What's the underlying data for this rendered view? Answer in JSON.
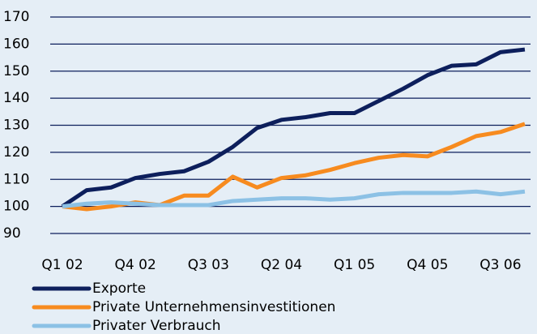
{
  "chart_data": {
    "type": "line",
    "categories": [
      "Q1 02",
      null,
      null,
      "Q4 02",
      null,
      null,
      "Q3 03",
      null,
      null,
      "Q2 04",
      null,
      null,
      "Q1 05",
      null,
      null,
      "Q4 05",
      null,
      null,
      "Q3 06",
      null
    ],
    "series": [
      {
        "name": "Exporte",
        "color": "#0d1f5c",
        "values": [
          100,
          106,
          107,
          110.5,
          112,
          113,
          116.5,
          122,
          129,
          132,
          133,
          134.5,
          134.5,
          139,
          143.5,
          148.5,
          152,
          152.5,
          157,
          158
        ]
      },
      {
        "name": "Private Unternehmensinvestitionen",
        "color": "#f78b1f",
        "values": [
          100,
          99,
          100,
          101.5,
          100.5,
          104,
          104,
          111,
          107,
          110.5,
          111.5,
          113.5,
          116,
          118,
          119,
          118.5,
          122,
          126,
          127.5,
          130.5
        ]
      },
      {
        "name": "Privater Verbrauch",
        "color": "#8cc1e5",
        "values": [
          100,
          101,
          101.5,
          101,
          100.5,
          100.5,
          100.5,
          102,
          102.5,
          103,
          103,
          102.5,
          103,
          104.5,
          105,
          105,
          105,
          105.5,
          104.5,
          105.5
        ]
      }
    ],
    "ylim": [
      90,
      170
    ],
    "yticks": [
      90,
      100,
      110,
      120,
      130,
      140,
      150,
      160,
      170
    ],
    "grid": true
  }
}
